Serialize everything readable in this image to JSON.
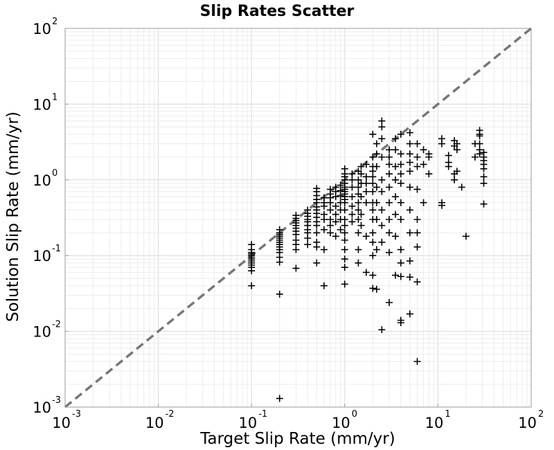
{
  "chart_data": {
    "type": "scatter",
    "title": "Slip Rates Scatter",
    "xlabel": "Target Slip Rate (mm/yr)",
    "ylabel": "Solution Slip Rate (mm/yr)",
    "x_scale": "log",
    "y_scale": "log",
    "xlim": [
      0.001,
      100
    ],
    "ylim": [
      0.001,
      100
    ],
    "grid": true,
    "marker": "+",
    "marker_color": "#000000",
    "reference_line": {
      "style": "dashed",
      "color": "#777777",
      "from": [
        0.001,
        0.001
      ],
      "to": [
        100,
        100
      ]
    },
    "x_ticks": [
      {
        "base": "10",
        "exp": "-3",
        "value": 0.001
      },
      {
        "base": "10",
        "exp": "-2",
        "value": 0.01
      },
      {
        "base": "10",
        "exp": "-1",
        "value": 0.1
      },
      {
        "base": "10",
        "exp": "0",
        "value": 1
      },
      {
        "base": "10",
        "exp": "1",
        "value": 10
      },
      {
        "base": "10",
        "exp": "2",
        "value": 100
      }
    ],
    "y_ticks": [
      {
        "base": "10",
        "exp": "-3",
        "value": 0.001
      },
      {
        "base": "10",
        "exp": "-2",
        "value": 0.01
      },
      {
        "base": "10",
        "exp": "-1",
        "value": 0.1
      },
      {
        "base": "10",
        "exp": "0",
        "value": 1
      },
      {
        "base": "10",
        "exp": "1",
        "value": 10
      },
      {
        "base": "10",
        "exp": "2",
        "value": 100
      }
    ],
    "points": [
      [
        0.1,
        0.063
      ],
      [
        0.1,
        0.07
      ],
      [
        0.1,
        0.075
      ],
      [
        0.1,
        0.08
      ],
      [
        0.1,
        0.085
      ],
      [
        0.1,
        0.09
      ],
      [
        0.1,
        0.095
      ],
      [
        0.1,
        0.1
      ],
      [
        0.1,
        0.105
      ],
      [
        0.1,
        0.11
      ],
      [
        0.1,
        0.12
      ],
      [
        0.1,
        0.14
      ],
      [
        0.1,
        0.04
      ],
      [
        0.2,
        0.12
      ],
      [
        0.2,
        0.13
      ],
      [
        0.2,
        0.14
      ],
      [
        0.2,
        0.15
      ],
      [
        0.2,
        0.16
      ],
      [
        0.2,
        0.17
      ],
      [
        0.2,
        0.18
      ],
      [
        0.2,
        0.19
      ],
      [
        0.2,
        0.2
      ],
      [
        0.2,
        0.22
      ],
      [
        0.2,
        0.11
      ],
      [
        0.2,
        0.095
      ],
      [
        0.2,
        0.082
      ],
      [
        0.2,
        0.031
      ],
      [
        0.2,
        0.0013
      ],
      [
        0.3,
        0.16
      ],
      [
        0.3,
        0.19
      ],
      [
        0.3,
        0.21
      ],
      [
        0.3,
        0.23
      ],
      [
        0.3,
        0.25
      ],
      [
        0.3,
        0.27
      ],
      [
        0.3,
        0.29
      ],
      [
        0.3,
        0.31
      ],
      [
        0.3,
        0.34
      ],
      [
        0.3,
        0.14
      ],
      [
        0.3,
        0.12
      ],
      [
        0.3,
        0.068
      ],
      [
        0.4,
        0.22
      ],
      [
        0.4,
        0.25
      ],
      [
        0.4,
        0.28
      ],
      [
        0.4,
        0.3
      ],
      [
        0.4,
        0.33
      ],
      [
        0.4,
        0.36
      ],
      [
        0.4,
        0.4
      ],
      [
        0.4,
        0.2
      ],
      [
        0.4,
        0.17
      ],
      [
        0.4,
        0.14
      ],
      [
        0.5,
        0.28
      ],
      [
        0.5,
        0.32
      ],
      [
        0.5,
        0.36
      ],
      [
        0.5,
        0.4
      ],
      [
        0.5,
        0.44
      ],
      [
        0.5,
        0.5
      ],
      [
        0.5,
        0.55
      ],
      [
        0.5,
        0.62
      ],
      [
        0.5,
        0.7
      ],
      [
        0.5,
        0.77
      ],
      [
        0.5,
        0.25
      ],
      [
        0.5,
        0.2
      ],
      [
        0.5,
        0.15
      ],
      [
        0.5,
        0.13
      ],
      [
        0.5,
        0.08
      ],
      [
        0.6,
        0.35
      ],
      [
        0.6,
        0.45
      ],
      [
        0.6,
        0.5
      ],
      [
        0.6,
        0.58
      ],
      [
        0.6,
        0.3
      ],
      [
        0.6,
        0.22
      ],
      [
        0.6,
        0.12
      ],
      [
        0.6,
        0.04
      ],
      [
        0.7,
        0.4
      ],
      [
        0.7,
        0.5
      ],
      [
        0.7,
        0.58
      ],
      [
        0.7,
        0.65
      ],
      [
        0.7,
        0.75
      ],
      [
        0.7,
        0.3
      ],
      [
        0.7,
        0.25
      ],
      [
        0.7,
        0.2
      ],
      [
        0.8,
        0.45
      ],
      [
        0.8,
        0.6
      ],
      [
        0.8,
        0.7
      ],
      [
        0.8,
        0.8
      ],
      [
        0.8,
        0.35
      ],
      [
        0.8,
        0.28
      ],
      [
        0.8,
        0.18
      ],
      [
        0.9,
        0.5
      ],
      [
        0.9,
        0.62
      ],
      [
        0.9,
        0.72
      ],
      [
        0.9,
        0.85
      ],
      [
        0.9,
        0.4
      ],
      [
        0.9,
        0.3
      ],
      [
        0.9,
        0.22
      ],
      [
        1.0,
        0.4
      ],
      [
        1.0,
        0.5
      ],
      [
        1.0,
        0.55
      ],
      [
        1.0,
        0.6
      ],
      [
        1.0,
        0.65
      ],
      [
        1.0,
        0.7
      ],
      [
        1.0,
        0.75
      ],
      [
        1.0,
        0.8
      ],
      [
        1.0,
        0.9
      ],
      [
        1.0,
        1.0
      ],
      [
        1.0,
        1.1
      ],
      [
        1.0,
        1.2
      ],
      [
        1.0,
        1.4
      ],
      [
        1.0,
        0.3
      ],
      [
        1.0,
        0.25
      ],
      [
        1.0,
        0.2
      ],
      [
        1.0,
        0.16
      ],
      [
        1.0,
        0.12
      ],
      [
        1.0,
        0.09
      ],
      [
        1.0,
        0.07
      ],
      [
        1.0,
        0.042
      ],
      [
        1.2,
        0.45
      ],
      [
        1.2,
        0.6
      ],
      [
        1.2,
        0.8
      ],
      [
        1.2,
        1.0
      ],
      [
        1.2,
        1.2
      ],
      [
        1.2,
        0.35
      ],
      [
        1.2,
        0.28
      ],
      [
        1.4,
        0.5
      ],
      [
        1.4,
        0.65
      ],
      [
        1.4,
        0.8
      ],
      [
        1.4,
        1.0
      ],
      [
        1.4,
        1.3
      ],
      [
        1.4,
        0.4
      ],
      [
        1.4,
        0.3
      ],
      [
        1.4,
        0.2
      ],
      [
        1.4,
        0.12
      ],
      [
        1.4,
        0.08
      ],
      [
        1.5,
        0.6
      ],
      [
        1.5,
        0.9
      ],
      [
        1.5,
        1.2
      ],
      [
        1.5,
        1.5
      ],
      [
        1.5,
        0.35
      ],
      [
        1.5,
        0.25
      ],
      [
        1.7,
        0.7
      ],
      [
        1.7,
        0.9
      ],
      [
        1.7,
        1.1
      ],
      [
        1.7,
        1.6
      ],
      [
        1.7,
        0.5
      ],
      [
        1.7,
        0.18
      ],
      [
        1.7,
        0.06
      ],
      [
        2.0,
        0.5
      ],
      [
        2.0,
        0.7
      ],
      [
        2.0,
        0.9
      ],
      [
        2.0,
        1.1
      ],
      [
        2.0,
        1.3
      ],
      [
        2.0,
        1.5
      ],
      [
        2.0,
        2.0
      ],
      [
        2.0,
        4.0
      ],
      [
        2.0,
        0.4
      ],
      [
        2.0,
        0.3
      ],
      [
        2.0,
        0.2
      ],
      [
        2.0,
        0.15
      ],
      [
        2.0,
        0.1
      ],
      [
        2.0,
        0.055
      ],
      [
        2.0,
        0.037
      ],
      [
        2.2,
        1.5
      ],
      [
        2.2,
        2.2
      ],
      [
        2.2,
        3.0
      ],
      [
        2.2,
        0.8
      ],
      [
        2.2,
        0.5
      ],
      [
        2.2,
        0.3
      ],
      [
        2.2,
        0.12
      ],
      [
        2.2,
        0.036
      ],
      [
        2.5,
        1.0
      ],
      [
        2.5,
        2.0
      ],
      [
        2.5,
        3.5
      ],
      [
        2.5,
        5.0
      ],
      [
        2.5,
        6.0
      ],
      [
        2.5,
        0.7
      ],
      [
        2.5,
        0.4
      ],
      [
        2.5,
        0.25
      ],
      [
        2.5,
        0.15
      ],
      [
        2.5,
        0.0105
      ],
      [
        3.0,
        0.8
      ],
      [
        3.0,
        1.2
      ],
      [
        3.0,
        1.6
      ],
      [
        3.0,
        2.0
      ],
      [
        3.0,
        2.5
      ],
      [
        3.0,
        0.5
      ],
      [
        3.0,
        0.3
      ],
      [
        3.0,
        0.2
      ],
      [
        3.0,
        0.11
      ],
      [
        3.0,
        0.024
      ],
      [
        3.5,
        1.0
      ],
      [
        3.5,
        1.5
      ],
      [
        3.5,
        2.5
      ],
      [
        3.5,
        3.5
      ],
      [
        3.5,
        0.6
      ],
      [
        3.5,
        0.35
      ],
      [
        3.5,
        0.18
      ],
      [
        3.5,
        0.055
      ],
      [
        4.0,
        1.2
      ],
      [
        4.0,
        1.6
      ],
      [
        4.0,
        2.2
      ],
      [
        4.0,
        4.0
      ],
      [
        4.0,
        0.9
      ],
      [
        4.0,
        0.5
      ],
      [
        4.0,
        0.3
      ],
      [
        4.0,
        0.12
      ],
      [
        4.0,
        0.08
      ],
      [
        4.0,
        0.053
      ],
      [
        4.0,
        0.014
      ],
      [
        4.0,
        0.013
      ],
      [
        5.0,
        1.3
      ],
      [
        5.0,
        1.7
      ],
      [
        5.0,
        2.2
      ],
      [
        5.0,
        3.0
      ],
      [
        5.0,
        4.2
      ],
      [
        5.0,
        0.8
      ],
      [
        5.0,
        0.4
      ],
      [
        5.0,
        0.2
      ],
      [
        5.0,
        0.085
      ],
      [
        5.0,
        0.052
      ],
      [
        5.0,
        0.017
      ],
      [
        6.0,
        1.5
      ],
      [
        6.0,
        2.0
      ],
      [
        6.0,
        3.0
      ],
      [
        6.0,
        0.75
      ],
      [
        6.0,
        0.3
      ],
      [
        6.0,
        0.2
      ],
      [
        6.0,
        0.13
      ],
      [
        6.0,
        0.045
      ],
      [
        6.0,
        0.004
      ],
      [
        7.0,
        1.6
      ],
      [
        7.0,
        2.5
      ],
      [
        7.0,
        0.5
      ],
      [
        8.0,
        2.0
      ],
      [
        8.0,
        2.2
      ],
      [
        8.0,
        1.2
      ],
      [
        11.0,
        3.0
      ],
      [
        11.0,
        3.5
      ],
      [
        11.0,
        0.5
      ],
      [
        11.0,
        0.46
      ],
      [
        13.0,
        1.7
      ],
      [
        13.0,
        2.1
      ],
      [
        13.0,
        1.5
      ],
      [
        15.0,
        3.3
      ],
      [
        15.0,
        2.8
      ],
      [
        15.0,
        1.2
      ],
      [
        15.0,
        1.0
      ],
      [
        16.0,
        1.3
      ],
      [
        16.0,
        2.5
      ],
      [
        16.0,
        3.0
      ],
      [
        18.0,
        0.8
      ],
      [
        20.0,
        0.18
      ],
      [
        25.0,
        3.0
      ],
      [
        25.0,
        2.0
      ],
      [
        28.0,
        4.0
      ],
      [
        28.0,
        4.5
      ],
      [
        28.0,
        3.8
      ],
      [
        28.0,
        3.0
      ],
      [
        28.0,
        2.5
      ],
      [
        28.0,
        2.2
      ],
      [
        31.0,
        2.3
      ],
      [
        31.0,
        2.0
      ],
      [
        31.0,
        1.8
      ],
      [
        31.0,
        1.6
      ],
      [
        31.0,
        1.4
      ],
      [
        31.0,
        1.1
      ],
      [
        31.0,
        0.9
      ],
      [
        31.0,
        0.48
      ]
    ]
  }
}
